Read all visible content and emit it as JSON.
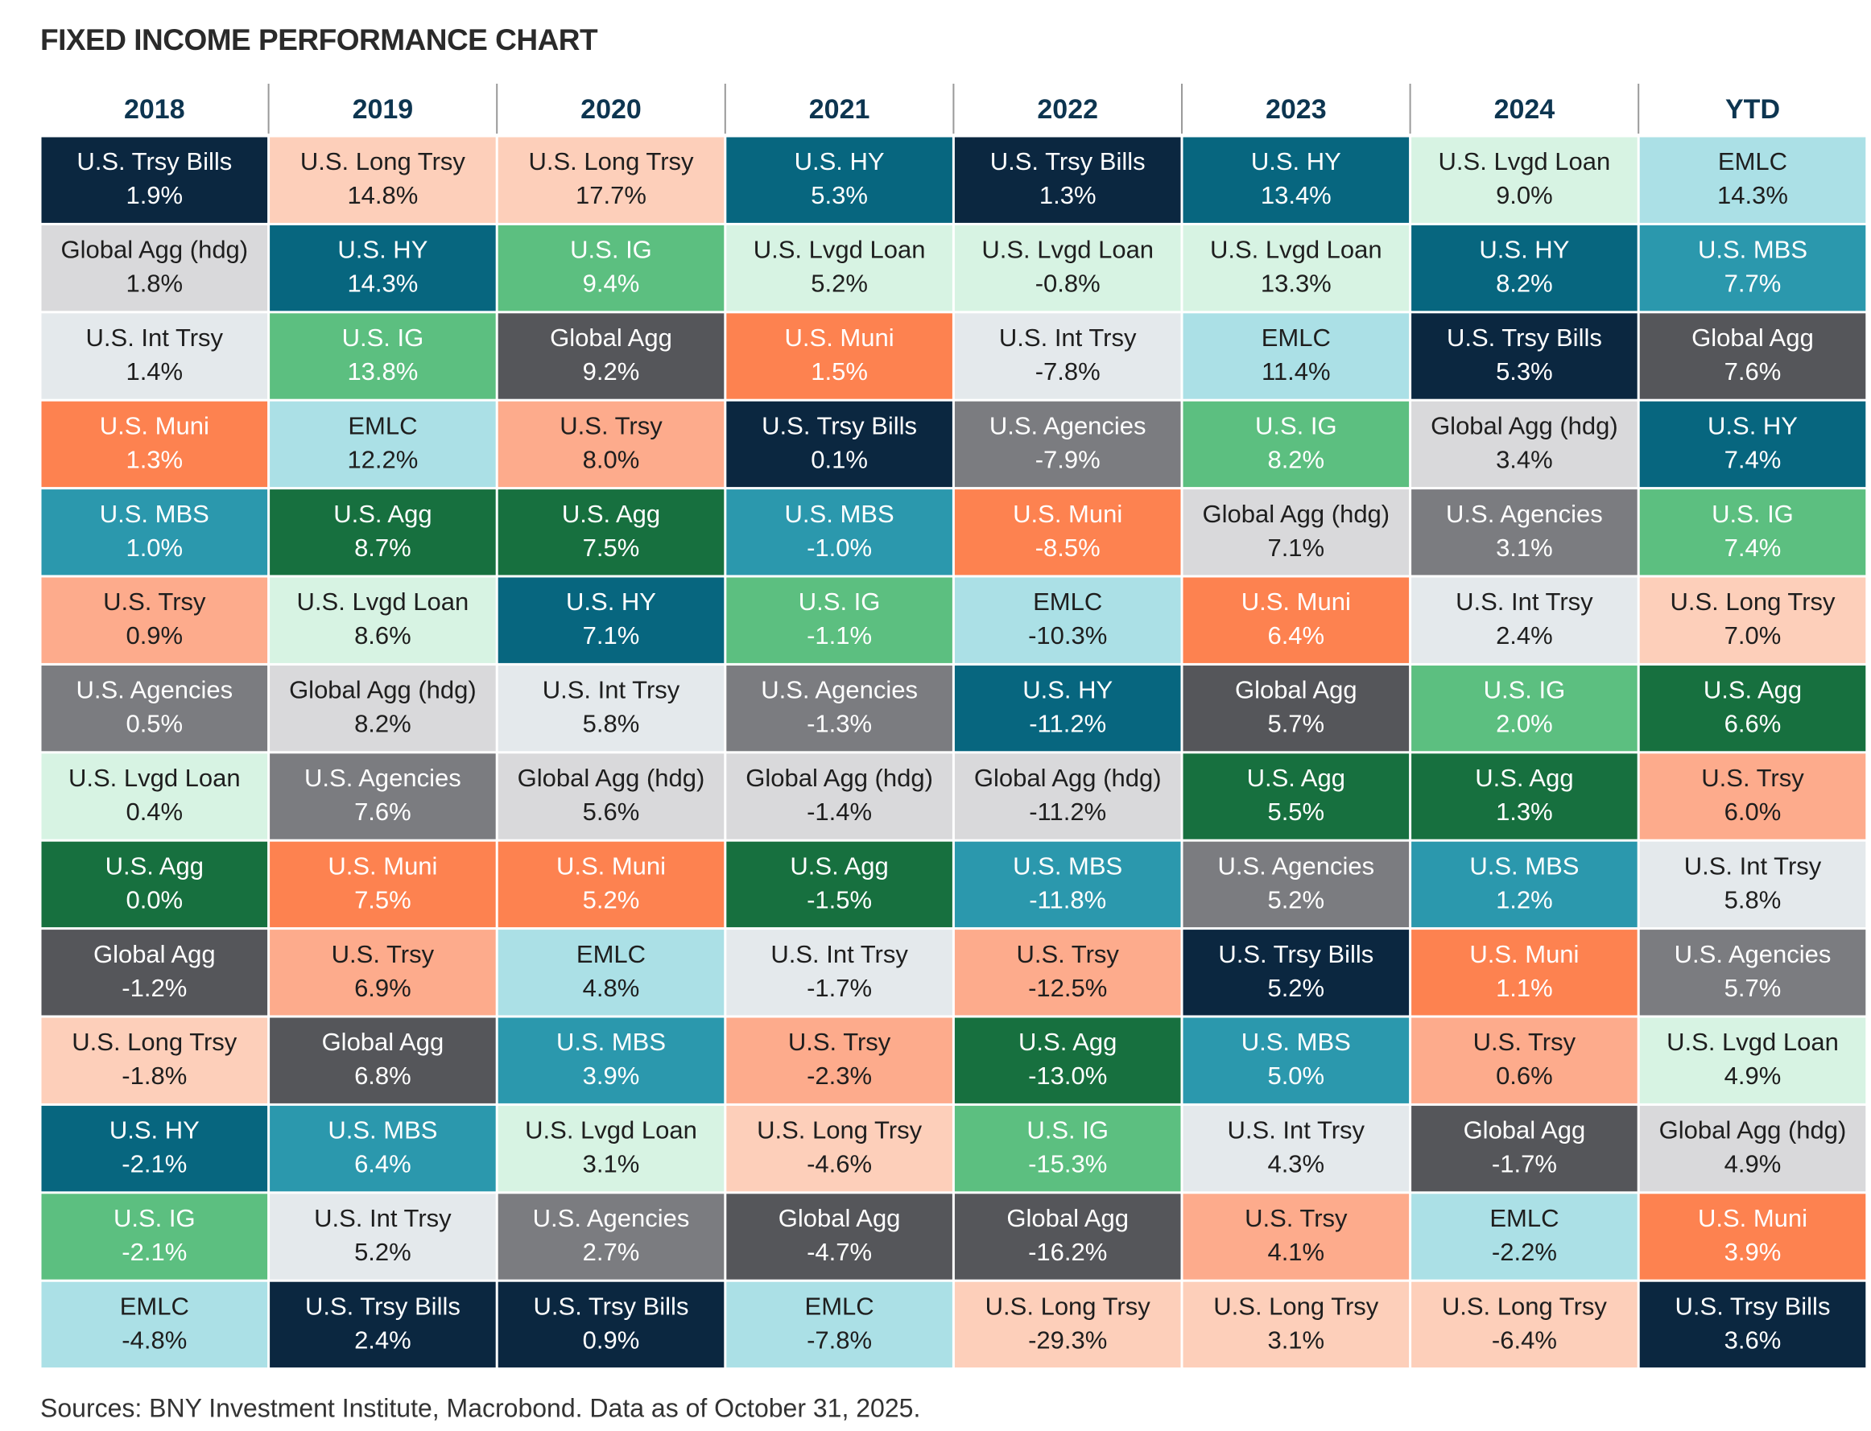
{
  "header": {
    "title": "FIXED INCOME PERFORMANCE CHART"
  },
  "table": {
    "columns": [
      {
        "header": "2018",
        "cells": [
          {
            "name": "U.S. Trsy Bills",
            "value": "1.9%",
            "color": "#0b2740"
          },
          {
            "name": "Global Agg (hdg)",
            "value": "1.8%",
            "color": "#d9d9db"
          },
          {
            "name": "U.S. Int Trsy",
            "value": "1.4%",
            "color": "#e4e9ec"
          },
          {
            "name": "U.S. Muni",
            "value": "1.3%",
            "color": "#fd8250"
          },
          {
            "name": "U.S. MBS",
            "value": "1.0%",
            "color": "#2b98ad"
          },
          {
            "name": "U.S. Trsy",
            "value": "0.9%",
            "color": "#fdab8c"
          },
          {
            "name": "U.S. Agencies",
            "value": "0.5%",
            "color": "#7b7c80"
          },
          {
            "name": "U.S. Lvgd Loan",
            "value": "0.4%",
            "color": "#d7f3e3"
          },
          {
            "name": "U.S. Agg",
            "value": "0.0%",
            "color": "#17703f"
          },
          {
            "name": "Global Agg",
            "value": "-1.2%",
            "color": "#55565a"
          },
          {
            "name": "U.S. Long Trsy",
            "value": "-1.8%",
            "color": "#fdcfba"
          },
          {
            "name": "U.S. HY",
            "value": "-2.1%",
            "color": "#07667f"
          },
          {
            "name": "U.S. IG",
            "value": "-2.1%",
            "color": "#5cbf80"
          },
          {
            "name": "EMLC",
            "value": "-4.8%",
            "color": "#abe0e6"
          }
        ]
      },
      {
        "header": "2019",
        "cells": [
          {
            "name": "U.S. Long Trsy",
            "value": "14.8%",
            "color": "#fdcfba"
          },
          {
            "name": "U.S. HY",
            "value": "14.3%",
            "color": "#07667f"
          },
          {
            "name": "U.S. IG",
            "value": "13.8%",
            "color": "#5cbf80"
          },
          {
            "name": "EMLC",
            "value": "12.2%",
            "color": "#abe0e6"
          },
          {
            "name": "U.S. Agg",
            "value": "8.7%",
            "color": "#17703f"
          },
          {
            "name": "U.S. Lvgd Loan",
            "value": "8.6%",
            "color": "#d7f3e3"
          },
          {
            "name": "Global Agg (hdg)",
            "value": "8.2%",
            "color": "#d9d9db"
          },
          {
            "name": "U.S. Agencies",
            "value": "7.6%",
            "color": "#7b7c80"
          },
          {
            "name": "U.S. Muni",
            "value": "7.5%",
            "color": "#fd8250"
          },
          {
            "name": "U.S. Trsy",
            "value": "6.9%",
            "color": "#fdab8c"
          },
          {
            "name": "Global Agg",
            "value": "6.8%",
            "color": "#55565a"
          },
          {
            "name": "U.S. MBS",
            "value": "6.4%",
            "color": "#2b98ad"
          },
          {
            "name": "U.S. Int Trsy",
            "value": "5.2%",
            "color": "#e4e9ec"
          },
          {
            "name": "U.S. Trsy Bills",
            "value": "2.4%",
            "color": "#0b2740"
          }
        ]
      },
      {
        "header": "2020",
        "cells": [
          {
            "name": "U.S. Long Trsy",
            "value": "17.7%",
            "color": "#fdcfba"
          },
          {
            "name": "U.S. IG",
            "value": "9.4%",
            "color": "#5cbf80"
          },
          {
            "name": "Global Agg",
            "value": "9.2%",
            "color": "#55565a"
          },
          {
            "name": "U.S. Trsy",
            "value": "8.0%",
            "color": "#fdab8c"
          },
          {
            "name": "U.S. Agg",
            "value": "7.5%",
            "color": "#17703f"
          },
          {
            "name": "U.S. HY",
            "value": "7.1%",
            "color": "#07667f"
          },
          {
            "name": "U.S. Int Trsy",
            "value": "5.8%",
            "color": "#e4e9ec"
          },
          {
            "name": "Global Agg (hdg)",
            "value": "5.6%",
            "color": "#d9d9db"
          },
          {
            "name": "U.S. Muni",
            "value": "5.2%",
            "color": "#fd8250"
          },
          {
            "name": "EMLC",
            "value": "4.8%",
            "color": "#abe0e6"
          },
          {
            "name": "U.S. MBS",
            "value": "3.9%",
            "color": "#2b98ad"
          },
          {
            "name": "U.S. Lvgd Loan",
            "value": "3.1%",
            "color": "#d7f3e3"
          },
          {
            "name": "U.S. Agencies",
            "value": "2.7%",
            "color": "#7b7c80"
          },
          {
            "name": "U.S. Trsy Bills",
            "value": "0.9%",
            "color": "#0b2740"
          }
        ]
      },
      {
        "header": "2021",
        "cells": [
          {
            "name": "U.S. HY",
            "value": "5.3%",
            "color": "#07667f"
          },
          {
            "name": "U.S. Lvgd Loan",
            "value": "5.2%",
            "color": "#d7f3e3"
          },
          {
            "name": "U.S. Muni",
            "value": "1.5%",
            "color": "#fd8250"
          },
          {
            "name": "U.S. Trsy Bills",
            "value": "0.1%",
            "color": "#0b2740"
          },
          {
            "name": "U.S. MBS",
            "value": "-1.0%",
            "color": "#2b98ad"
          },
          {
            "name": "U.S. IG",
            "value": "-1.1%",
            "color": "#5cbf80"
          },
          {
            "name": "U.S. Agencies",
            "value": "-1.3%",
            "color": "#7b7c80"
          },
          {
            "name": "Global Agg (hdg)",
            "value": "-1.4%",
            "color": "#d9d9db"
          },
          {
            "name": "U.S. Agg",
            "value": "-1.5%",
            "color": "#17703f"
          },
          {
            "name": "U.S. Int Trsy",
            "value": "-1.7%",
            "color": "#e4e9ec"
          },
          {
            "name": "U.S. Trsy",
            "value": "-2.3%",
            "color": "#fdab8c"
          },
          {
            "name": "U.S. Long Trsy",
            "value": "-4.6%",
            "color": "#fdcfba"
          },
          {
            "name": "Global Agg",
            "value": "-4.7%",
            "color": "#55565a"
          },
          {
            "name": "EMLC",
            "value": "-7.8%",
            "color": "#abe0e6"
          }
        ]
      },
      {
        "header": "2022",
        "cells": [
          {
            "name": "U.S. Trsy Bills",
            "value": "1.3%",
            "color": "#0b2740"
          },
          {
            "name": "U.S. Lvgd Loan",
            "value": "-0.8%",
            "color": "#d7f3e3"
          },
          {
            "name": "U.S. Int Trsy",
            "value": "-7.8%",
            "color": "#e4e9ec"
          },
          {
            "name": "U.S. Agencies",
            "value": "-7.9%",
            "color": "#7b7c80"
          },
          {
            "name": "U.S. Muni",
            "value": "-8.5%",
            "color": "#fd8250"
          },
          {
            "name": "EMLC",
            "value": "-10.3%",
            "color": "#abe0e6"
          },
          {
            "name": "U.S. HY",
            "value": "-11.2%",
            "color": "#07667f"
          },
          {
            "name": "Global Agg (hdg)",
            "value": "-11.2%",
            "color": "#d9d9db"
          },
          {
            "name": "U.S. MBS",
            "value": "-11.8%",
            "color": "#2b98ad"
          },
          {
            "name": "U.S. Trsy",
            "value": "-12.5%",
            "color": "#fdab8c"
          },
          {
            "name": "U.S. Agg",
            "value": "-13.0%",
            "color": "#17703f"
          },
          {
            "name": "U.S. IG",
            "value": "-15.3%",
            "color": "#5cbf80"
          },
          {
            "name": "Global Agg",
            "value": "-16.2%",
            "color": "#55565a"
          },
          {
            "name": "U.S. Long Trsy",
            "value": "-29.3%",
            "color": "#fdcfba"
          }
        ]
      },
      {
        "header": "2023",
        "cells": [
          {
            "name": "U.S. HY",
            "value": "13.4%",
            "color": "#07667f"
          },
          {
            "name": "U.S. Lvgd Loan",
            "value": "13.3%",
            "color": "#d7f3e3"
          },
          {
            "name": "EMLC",
            "value": "11.4%",
            "color": "#abe0e6"
          },
          {
            "name": "U.S. IG",
            "value": "8.2%",
            "color": "#5cbf80"
          },
          {
            "name": "Global Agg (hdg)",
            "value": "7.1%",
            "color": "#d9d9db"
          },
          {
            "name": "U.S. Muni",
            "value": "6.4%",
            "color": "#fd8250"
          },
          {
            "name": "Global Agg",
            "value": "5.7%",
            "color": "#55565a"
          },
          {
            "name": "U.S. Agg",
            "value": "5.5%",
            "color": "#17703f"
          },
          {
            "name": "U.S. Agencies",
            "value": "5.2%",
            "color": "#7b7c80"
          },
          {
            "name": "U.S. Trsy Bills",
            "value": "5.2%",
            "color": "#0b2740"
          },
          {
            "name": "U.S. MBS",
            "value": "5.0%",
            "color": "#2b98ad"
          },
          {
            "name": "U.S. Int Trsy",
            "value": "4.3%",
            "color": "#e4e9ec"
          },
          {
            "name": "U.S. Trsy",
            "value": "4.1%",
            "color": "#fdab8c"
          },
          {
            "name": "U.S. Long Trsy",
            "value": "3.1%",
            "color": "#fdcfba"
          }
        ]
      },
      {
        "header": "2024",
        "cells": [
          {
            "name": "U.S. Lvgd Loan",
            "value": "9.0%",
            "color": "#d7f3e3"
          },
          {
            "name": "U.S. HY",
            "value": "8.2%",
            "color": "#07667f"
          },
          {
            "name": "U.S. Trsy Bills",
            "value": "5.3%",
            "color": "#0b2740"
          },
          {
            "name": "Global Agg (hdg)",
            "value": "3.4%",
            "color": "#d9d9db"
          },
          {
            "name": "U.S. Agencies",
            "value": "3.1%",
            "color": "#7b7c80"
          },
          {
            "name": "U.S. Int Trsy",
            "value": "2.4%",
            "color": "#e4e9ec"
          },
          {
            "name": "U.S. IG",
            "value": "2.0%",
            "color": "#5cbf80"
          },
          {
            "name": "U.S. Agg",
            "value": "1.3%",
            "color": "#17703f"
          },
          {
            "name": "U.S. MBS",
            "value": "1.2%",
            "color": "#2b98ad"
          },
          {
            "name": "U.S. Muni",
            "value": "1.1%",
            "color": "#fd8250"
          },
          {
            "name": "U.S. Trsy",
            "value": "0.6%",
            "color": "#fdab8c"
          },
          {
            "name": "Global Agg",
            "value": "-1.7%",
            "color": "#55565a"
          },
          {
            "name": "EMLC",
            "value": "-2.2%",
            "color": "#abe0e6"
          },
          {
            "name": "U.S. Long Trsy",
            "value": "-6.4%",
            "color": "#fdcfba"
          }
        ]
      },
      {
        "header": "YTD",
        "cells": [
          {
            "name": "EMLC",
            "value": "14.3%",
            "color": "#abe0e6"
          },
          {
            "name": "U.S. MBS",
            "value": "7.7%",
            "color": "#2b98ad"
          },
          {
            "name": "Global Agg",
            "value": "7.6%",
            "color": "#55565a"
          },
          {
            "name": "U.S. HY",
            "value": "7.4%",
            "color": "#07667f"
          },
          {
            "name": "U.S. IG",
            "value": "7.4%",
            "color": "#5cbf80"
          },
          {
            "name": "U.S. Long Trsy",
            "value": "7.0%",
            "color": "#fdcfba"
          },
          {
            "name": "U.S. Agg",
            "value": "6.6%",
            "color": "#17703f"
          },
          {
            "name": "U.S. Trsy",
            "value": "6.0%",
            "color": "#fdab8c"
          },
          {
            "name": "U.S. Int Trsy",
            "value": "5.8%",
            "color": "#e4e9ec"
          },
          {
            "name": "U.S. Agencies",
            "value": "5.7%",
            "color": "#7b7c80"
          },
          {
            "name": "U.S. Lvgd Loan",
            "value": "4.9%",
            "color": "#d7f3e3"
          },
          {
            "name": "Global Agg (hdg)",
            "value": "4.9%",
            "color": "#d9d9db"
          },
          {
            "name": "U.S. Muni",
            "value": "3.9%",
            "color": "#fd8250"
          },
          {
            "name": "U.S. Trsy Bills",
            "value": "3.6%",
            "color": "#0b2740"
          }
        ]
      }
    ]
  },
  "footer": {
    "source": "Sources: BNY Investment Institute, Macrobond. Data as of October 31, 2025."
  }
}
